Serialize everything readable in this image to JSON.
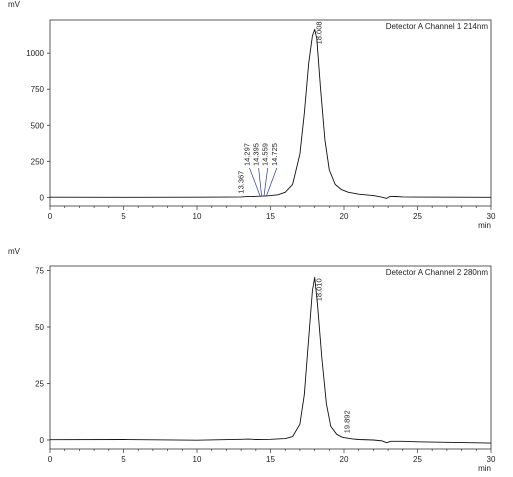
{
  "chart_data": [
    {
      "type": "line",
      "title": "",
      "detector_label": "Detector A Channel 1 214nm",
      "ylabel": "mV",
      "xlabel": "min",
      "xlim": [
        0,
        30
      ],
      "ylim": [
        -60,
        1230
      ],
      "xticks": [
        0,
        5,
        10,
        15,
        20,
        25,
        30
      ],
      "yticks": [
        0,
        250,
        500,
        750,
        1000
      ],
      "grid": false,
      "series": [
        {
          "x": [
            0,
            5,
            10,
            12,
            13,
            13.4,
            13.8,
            14.3,
            14.4,
            14.6,
            14.73,
            15,
            15.5,
            16,
            16.5,
            17,
            17.3,
            17.6,
            17.85,
            18.008,
            18.15,
            18.4,
            18.7,
            19,
            19.4,
            19.8,
            20.3,
            21,
            22,
            22.5,
            22.9,
            23.1,
            23.5,
            24,
            25,
            30
          ],
          "y": [
            1,
            0,
            1,
            2,
            3,
            5,
            6,
            8,
            9,
            9,
            10,
            12,
            18,
            35,
            90,
            300,
            580,
            930,
            1120,
            1165,
            1100,
            760,
            400,
            190,
            90,
            55,
            35,
            22,
            12,
            3,
            -7,
            5,
            6,
            3,
            2,
            0
          ]
        }
      ],
      "peaks": [
        {
          "label": "13.367",
          "x": 13.367,
          "y": 5
        },
        {
          "label": "14.297",
          "x": 14.297,
          "y": 8
        },
        {
          "label": "14.395",
          "x": 14.395,
          "y": 9
        },
        {
          "label": "14.559",
          "x": 14.559,
          "y": 9
        },
        {
          "label": "14.725",
          "x": 14.725,
          "y": 10
        },
        {
          "label": "18.008",
          "x": 18.008,
          "y": 1165
        }
      ]
    },
    {
      "type": "line",
      "title": "",
      "detector_label": "Detector A Channel 2 280nm",
      "ylabel": "mV",
      "xlabel": "min",
      "xlim": [
        0,
        30
      ],
      "ylim": [
        -4,
        77
      ],
      "xticks": [
        0,
        5,
        10,
        15,
        20,
        25,
        30
      ],
      "yticks": [
        0,
        25,
        50,
        75
      ],
      "grid": false,
      "series": [
        {
          "x": [
            0,
            5,
            10,
            13,
            13.5,
            14,
            15,
            16,
            16.5,
            17,
            17.3,
            17.6,
            17.85,
            18.01,
            18.2,
            18.5,
            18.8,
            19.1,
            19.5,
            19.892,
            20.5,
            21,
            22,
            22.6,
            22.9,
            23.2,
            24,
            25,
            30
          ],
          "y": [
            0.1,
            0.2,
            -0.1,
            0.3,
            0.4,
            0.2,
            0.3,
            0.6,
            1.5,
            7,
            20,
            45,
            66,
            72,
            60,
            36,
            16,
            6,
            2.5,
            1.2,
            0.5,
            0.2,
            0,
            -0.4,
            -1.2,
            -0.6,
            -0.6,
            -0.8,
            -1.4
          ]
        }
      ],
      "peaks": [
        {
          "label": "18.010",
          "x": 18.01,
          "y": 72
        },
        {
          "label": "19.892",
          "x": 19.892,
          "y": 1.2
        }
      ]
    }
  ]
}
